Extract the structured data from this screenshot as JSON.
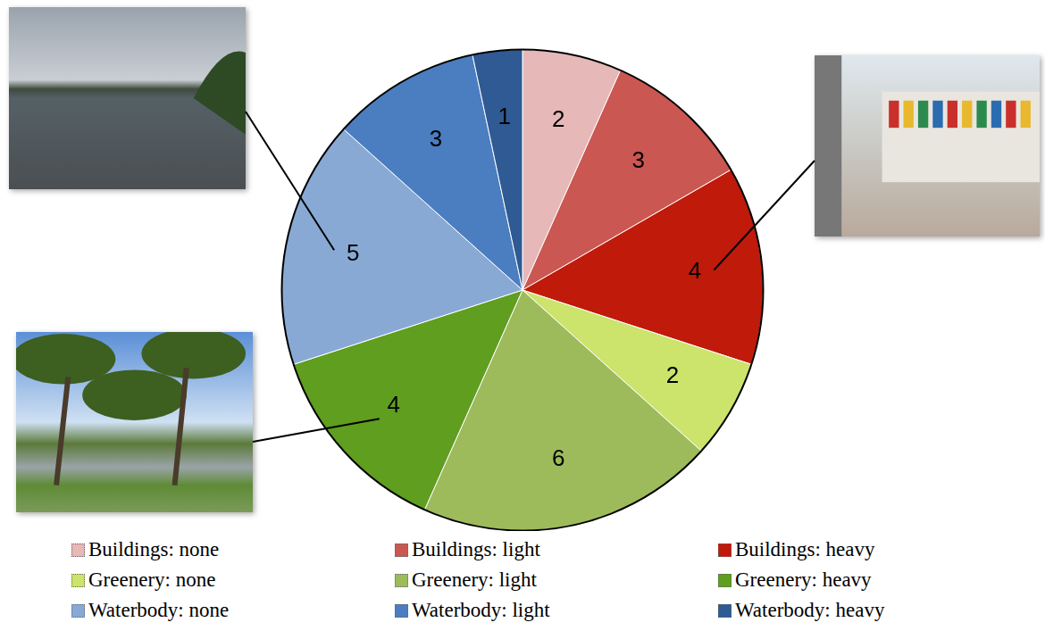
{
  "chart_data": {
    "type": "pie",
    "categories": [
      "Buildings: none",
      "Buildings: light",
      "Buildings: heavy",
      "Greenery: none",
      "Greenery: light",
      "Greenery: heavy",
      "Waterbody: none",
      "Waterbody: light",
      "Waterbody: heavy"
    ],
    "values": [
      2,
      3,
      4,
      2,
      6,
      4,
      5,
      3,
      1
    ],
    "colors": [
      "#e6b8b8",
      "#cb5752",
      "#c01a0b",
      "#cce36c",
      "#9dbb5b",
      "#5f9e1f",
      "#89a9d5",
      "#4a7ec0",
      "#2f5a93"
    ],
    "data_labels": true,
    "legend": "bottom"
  }
}
